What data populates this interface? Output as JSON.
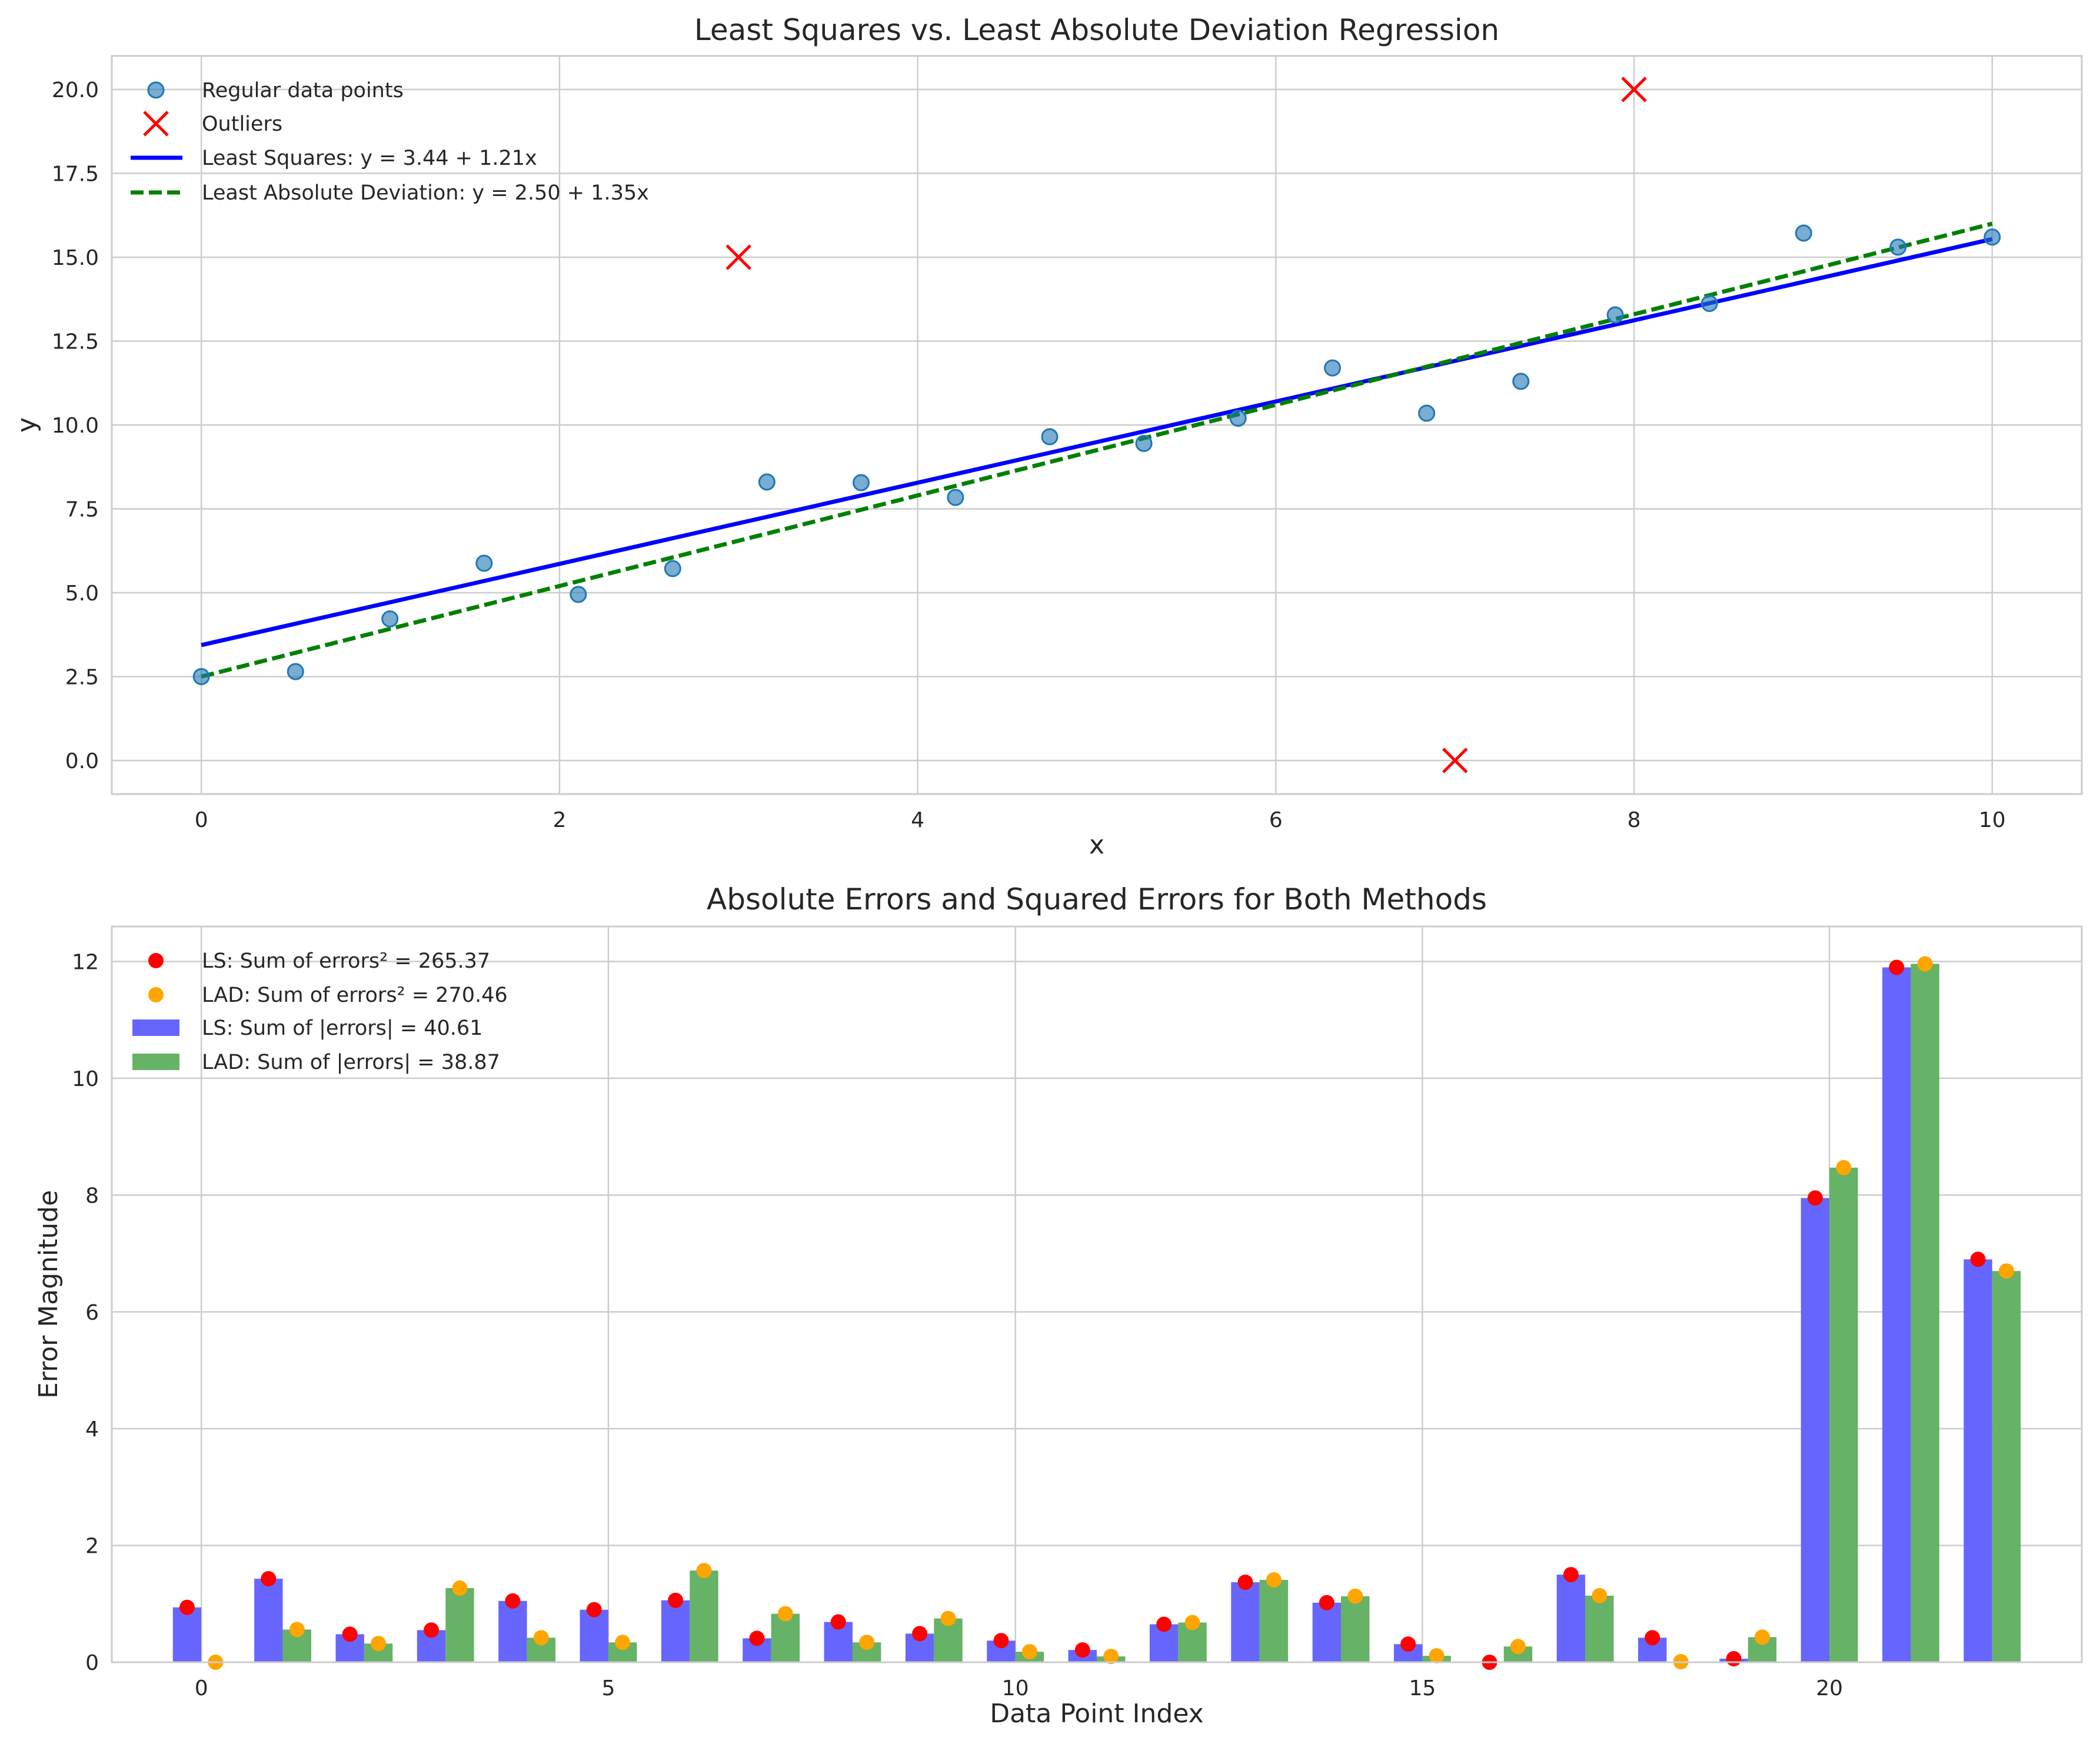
{
  "chart_data": [
    {
      "type": "scatter",
      "title": "Least Squares vs. Least Absolute Deviation Regression",
      "xlabel": "x",
      "ylabel": "y",
      "xlim": [
        -0.5,
        10.5
      ],
      "ylim": [
        -1.0,
        21.0
      ],
      "xticks": [
        0,
        2,
        4,
        6,
        8,
        10
      ],
      "yticks": [
        0.0,
        2.5,
        5.0,
        7.5,
        10.0,
        12.5,
        15.0,
        17.5,
        20.0
      ],
      "grid": true,
      "legend_position": "top-left",
      "series": [
        {
          "name": "Regular data points",
          "kind": "scatter",
          "marker": "circle",
          "color": "#1f77b4",
          "x": [
            0.0,
            0.526,
            1.053,
            1.579,
            2.105,
            2.632,
            3.158,
            3.684,
            4.211,
            4.737,
            5.263,
            5.789,
            6.316,
            6.842,
            7.368,
            7.895,
            8.421,
            8.947,
            9.474,
            10.0
          ],
          "y": [
            2.5,
            2.65,
            4.22,
            5.88,
            4.95,
            5.72,
            8.3,
            8.28,
            7.84,
            9.65,
            9.45,
            10.2,
            11.7,
            10.35,
            11.3,
            13.28,
            13.62,
            15.72,
            15.3,
            15.6
          ]
        },
        {
          "name": "Outliers",
          "kind": "scatter",
          "marker": "x",
          "color": "#ff0000",
          "x": [
            3.0,
            7.0,
            8.0
          ],
          "y": [
            15.0,
            0.0,
            20.0
          ]
        },
        {
          "name": "Least Squares: y = 3.44 + 1.21x",
          "kind": "line",
          "style": "solid",
          "color": "#0000ff",
          "intercept": 3.44,
          "slope": 1.21,
          "x": [
            0,
            10
          ]
        },
        {
          "name": "Least Absolute Deviation: y = 2.50 + 1.35x",
          "kind": "line",
          "style": "dashed",
          "color": "#008000",
          "intercept": 2.5,
          "slope": 1.35,
          "x": [
            0,
            10
          ]
        }
      ]
    },
    {
      "type": "bar",
      "title": "Absolute Errors and Squared Errors for Both Methods",
      "xlabel": "Data Point Index",
      "ylabel": "Error Magnitude",
      "xlim": [
        -1.1,
        23.1
      ],
      "ylim": [
        0,
        12.6
      ],
      "xticks": [
        0,
        5,
        10,
        15,
        20
      ],
      "yticks": [
        0,
        2,
        4,
        6,
        8,
        10,
        12
      ],
      "grid": true,
      "legend_position": "top-left",
      "x": [
        0,
        1,
        2,
        3,
        4,
        5,
        6,
        7,
        8,
        9,
        10,
        11,
        12,
        13,
        14,
        15,
        16,
        17,
        18,
        19,
        20,
        21,
        22
      ],
      "series": [
        {
          "name": "LS: Sum of errors² = 265.37",
          "kind": "scatter",
          "color": "#ff0000",
          "values": [
            0.94,
            1.43,
            0.48,
            0.55,
            1.05,
            0.9,
            1.06,
            0.41,
            0.69,
            0.49,
            0.37,
            0.21,
            0.65,
            1.37,
            1.02,
            0.31,
            0.0,
            1.5,
            0.42,
            0.06,
            7.95,
            11.9,
            6.9
          ]
        },
        {
          "name": "LAD: Sum of errors² = 270.46",
          "kind": "scatter",
          "color": "#ffa500",
          "values": [
            0.0,
            0.56,
            0.32,
            1.27,
            0.42,
            0.34,
            1.57,
            0.83,
            0.34,
            0.75,
            0.18,
            0.1,
            0.68,
            1.41,
            1.13,
            0.11,
            0.27,
            1.14,
            0.01,
            0.43,
            8.47,
            11.96,
            6.7
          ]
        },
        {
          "name": "LS: Sum of |errors| = 40.61",
          "kind": "bar",
          "color": "#6666ff",
          "values": [
            0.94,
            1.43,
            0.48,
            0.55,
            1.05,
            0.9,
            1.06,
            0.41,
            0.69,
            0.49,
            0.37,
            0.21,
            0.65,
            1.37,
            1.02,
            0.31,
            0.0,
            1.5,
            0.42,
            0.06,
            7.95,
            11.9,
            6.9
          ]
        },
        {
          "name": "LAD: Sum of |errors| = 38.87",
          "kind": "bar",
          "color": "#66b266",
          "values": [
            0.0,
            0.56,
            0.32,
            1.27,
            0.42,
            0.34,
            1.57,
            0.83,
            0.34,
            0.75,
            0.18,
            0.1,
            0.68,
            1.41,
            1.13,
            0.11,
            0.27,
            1.14,
            0.01,
            0.43,
            8.47,
            11.96,
            6.7
          ]
        }
      ]
    }
  ]
}
